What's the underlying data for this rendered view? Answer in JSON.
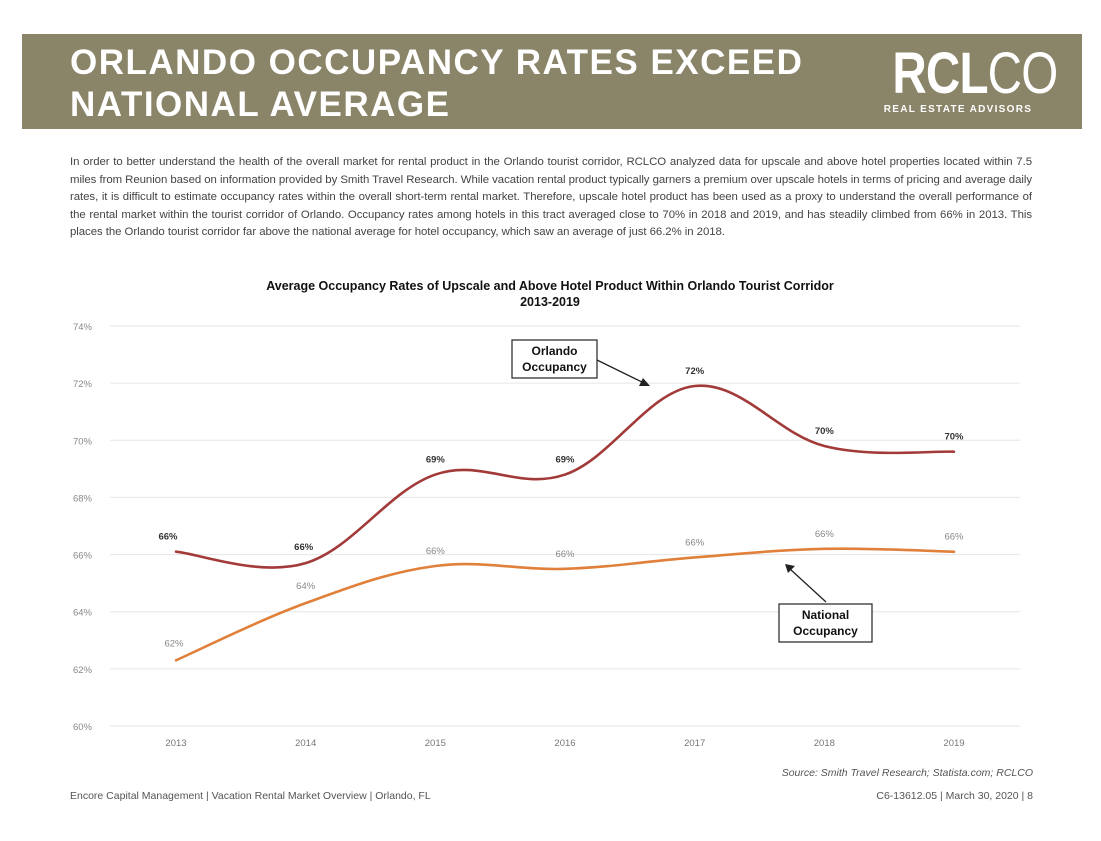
{
  "header": {
    "title_line1": "ORLANDO OCCUPANCY RATES EXCEED",
    "title_line2": "NATIONAL AVERAGE",
    "logo_text_bold": "RCL",
    "logo_text_thin": "CO",
    "logo_subtitle": "REAL ESTATE ADVISORS",
    "banner_color": "#8a8468"
  },
  "intro_text": "In order to better understand the health of the overall market for rental product in the Orlando tourist corridor, RCLCO analyzed data for upscale and above hotel properties located within 7.5 miles from Reunion based on information provided by Smith Travel Research. While vacation rental product typically garners a premium over upscale hotels in terms of pricing and average daily rates, it is difficult to estimate occupancy rates within the overall short-term rental market. Therefore, upscale hotel product has been used as a proxy to understand the overall performance of the rental market within the tourist corridor of Orlando. Occupancy rates among hotels in this tract averaged close to 70% in 2018 and 2019, and has steadily climbed from 66% in 2013. This places the Orlando tourist corridor far above the national average for hotel occupancy, which saw an average of just 66.2% in 2018.",
  "chart_data": {
    "type": "line",
    "title": "Average Occupancy Rates of Upscale and Above Hotel Product Within Orlando Tourist Corridor",
    "subtitle": "2013-2019",
    "xlabel": "",
    "ylabel": "",
    "x": [
      "2013",
      "2014",
      "2015",
      "2016",
      "2017",
      "2018",
      "2019"
    ],
    "ylim": [
      60,
      74
    ],
    "y_ticks": [
      60,
      62,
      64,
      66,
      68,
      70,
      72,
      74
    ],
    "y_tick_labels": [
      "60%",
      "62%",
      "64%",
      "66%",
      "68%",
      "70%",
      "72%",
      "74%"
    ],
    "grid": true,
    "smooth": true,
    "series": [
      {
        "name": "Orlando Occupancy",
        "color": "#a33a3a",
        "values": [
          66.1,
          65.7,
          68.8,
          68.8,
          71.9,
          69.8,
          69.6
        ],
        "labels": [
          "66%",
          "66%",
          "69%",
          "69%",
          "72%",
          "70%",
          "70%"
        ],
        "label_bold": true
      },
      {
        "name": "National Occupancy",
        "color": "#e0803a",
        "values": [
          62.3,
          64.3,
          65.6,
          65.5,
          65.9,
          66.2,
          66.1
        ],
        "labels": [
          "62%",
          "64%",
          "66%",
          "66%",
          "66%",
          "66%",
          "66%"
        ],
        "label_bold": false
      }
    ],
    "annotations": [
      {
        "line1": "Orlando",
        "line2": "Occupancy"
      },
      {
        "line1": "National",
        "line2": "Occupancy"
      }
    ]
  },
  "source": "Source: Smith Travel Research; Statista.com; RCLCO",
  "footer": {
    "left": "Encore Capital Management  |  Vacation Rental Market Overview  |  Orlando, FL",
    "right": "C6-13612.05  |  March 30, 2020  |  8"
  }
}
